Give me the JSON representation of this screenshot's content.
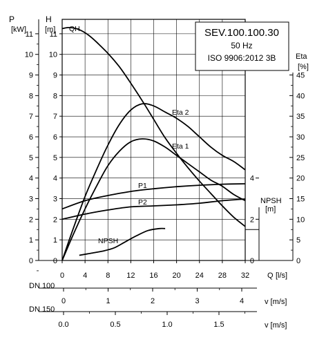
{
  "chart_data": {
    "type": "line",
    "info_box": [
      "SEV.100.100.30",
      "50 Hz",
      "ISO 9906:2012 3B"
    ],
    "axes": {
      "left_p": {
        "label": "P",
        "unit": "[kW]",
        "ticks": [
          0,
          1,
          2,
          3,
          4,
          5,
          6,
          7,
          8,
          9,
          10,
          11
        ]
      },
      "left_h": {
        "label": "H",
        "unit": "[m]",
        "ticks": [
          0,
          1,
          2,
          3,
          4,
          5,
          6,
          7,
          8,
          9,
          10,
          11
        ]
      },
      "right_eta": {
        "label": "Eta",
        "unit": "[%]",
        "ticks": [
          0,
          5,
          10,
          15,
          20,
          25,
          30,
          35,
          40,
          45
        ]
      },
      "right_npsh": {
        "label": "NPSH",
        "unit": "[m]",
        "ticks": [
          0,
          2,
          4
        ]
      },
      "q": {
        "label": "Q",
        "unit": "[l/s]",
        "ticks": [
          0,
          4,
          8,
          12,
          16,
          20,
          24,
          28,
          32
        ],
        "range": [
          0,
          32
        ]
      },
      "dn100": {
        "label": "DN 100",
        "unit": "v [m/s]",
        "ticks": [
          0,
          1,
          2,
          3,
          4
        ]
      },
      "dn150": {
        "label": "DN 150",
        "unit": "v [m/s]",
        "ticks": [
          "0.0",
          "0.5",
          "1.0",
          "1.5"
        ]
      }
    },
    "ylim": [
      0,
      11.7
    ],
    "series": [
      {
        "name": "QH",
        "axis": "H",
        "color": "#000000",
        "x": [
          0,
          1,
          2,
          3,
          4,
          5,
          6,
          8,
          10,
          12,
          14,
          16,
          18,
          20,
          22,
          24,
          26,
          28,
          30,
          32
        ],
        "y": [
          11.25,
          11.3,
          11.28,
          11.2,
          11.05,
          10.85,
          10.6,
          10.05,
          9.4,
          8.6,
          7.75,
          6.85,
          5.95,
          5.2,
          4.5,
          3.85,
          3.25,
          2.65,
          2.1,
          1.65
        ]
      },
      {
        "name": "Eta 2",
        "axis": "Eta",
        "color": "#000000",
        "x": [
          0,
          2,
          4,
          6,
          8,
          10,
          12,
          14,
          16,
          18,
          20,
          22,
          24,
          26,
          28,
          30,
          32
        ],
        "y": [
          0,
          8,
          15.5,
          22,
          28,
          33,
          36.5,
          38,
          37.5,
          36,
          34.5,
          32.5,
          30,
          27.5,
          25.5,
          24,
          22
        ]
      },
      {
        "name": "Eta 1",
        "axis": "Eta",
        "color": "#000000",
        "x": [
          0,
          2,
          4,
          6,
          8,
          10,
          12,
          14,
          16,
          18,
          20,
          22,
          24,
          26,
          28,
          30,
          32
        ],
        "y": [
          0,
          6.5,
          12.5,
          18,
          23,
          26.5,
          28.8,
          29.5,
          29,
          27.5,
          25.5,
          23.5,
          21.5,
          19.5,
          18,
          16,
          14.5
        ]
      },
      {
        "name": "P1",
        "axis": "P",
        "color": "#000000",
        "x": [
          0,
          4,
          8,
          12,
          16,
          20,
          24,
          28,
          32
        ],
        "y": [
          2.5,
          2.9,
          3.15,
          3.35,
          3.48,
          3.58,
          3.65,
          3.7,
          3.72
        ]
      },
      {
        "name": "P2",
        "axis": "P",
        "color": "#000000",
        "x": [
          0,
          4,
          8,
          12,
          16,
          20,
          24,
          28,
          32
        ],
        "y": [
          2.0,
          2.25,
          2.45,
          2.6,
          2.65,
          2.7,
          2.78,
          2.9,
          2.98
        ]
      },
      {
        "name": "NPSH",
        "axis": "NPSH",
        "color": "#000000",
        "x": [
          3,
          5,
          7,
          9,
          11,
          13,
          15,
          17,
          18
        ],
        "y": [
          0.25,
          0.35,
          0.45,
          0.6,
          0.9,
          1.2,
          1.45,
          1.55,
          1.55
        ]
      }
    ],
    "grid": true
  }
}
